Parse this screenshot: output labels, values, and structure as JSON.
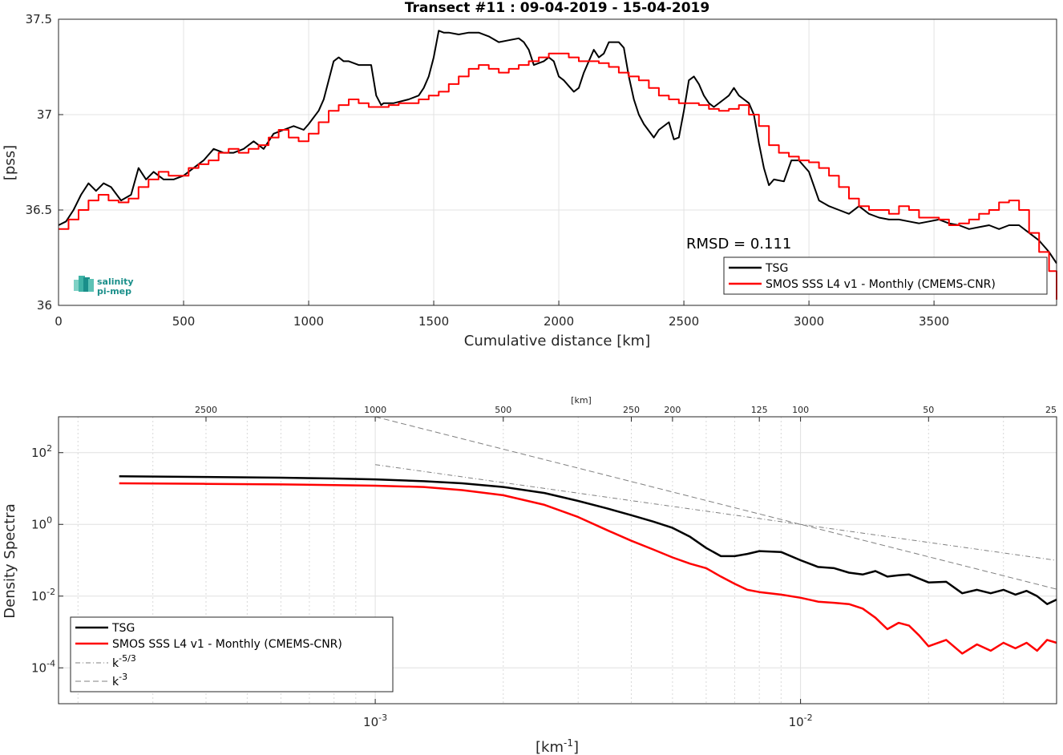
{
  "chart_data": [
    {
      "type": "line",
      "title": "Transect #11 : 09-04-2019 - 15-04-2019",
      "xlabel": "Cumulative distance [km]",
      "ylabel": "[pss]",
      "xlim": [
        0,
        3990
      ],
      "ylim": [
        36,
        37.5
      ],
      "xticks": [
        0,
        500,
        1000,
        1500,
        2000,
        2500,
        3000,
        3500
      ],
      "xtick_labels": [
        "0",
        "500",
        "1000",
        "1500",
        "2000",
        "2500",
        "3000",
        "3500"
      ],
      "yticks": [
        36,
        36.5,
        37,
        37.5
      ],
      "ytick_labels": [
        "36",
        "36.5",
        "37",
        "37.5"
      ],
      "grid": true,
      "legend_position": "bottom-right",
      "annotation": "RMSD = 0.111",
      "series": [
        {
          "name": "TSG",
          "color": "#000000",
          "x": [
            0,
            30,
            60,
            90,
            120,
            150,
            180,
            210,
            250,
            290,
            320,
            350,
            380,
            420,
            460,
            500,
            540,
            580,
            620,
            660,
            700,
            740,
            780,
            820,
            860,
            900,
            940,
            980,
            1000,
            1040,
            1060,
            1080,
            1100,
            1120,
            1140,
            1160,
            1200,
            1250,
            1270,
            1290,
            1300,
            1340,
            1400,
            1440,
            1460,
            1480,
            1500,
            1520,
            1540,
            1560,
            1600,
            1640,
            1680,
            1720,
            1760,
            1800,
            1840,
            1860,
            1880,
            1900,
            1940,
            1960,
            1980,
            2000,
            2020,
            2040,
            2060,
            2080,
            2100,
            2140,
            2160,
            2180,
            2200,
            2240,
            2260,
            2280,
            2300,
            2320,
            2340,
            2380,
            2400,
            2440,
            2460,
            2480,
            2500,
            2520,
            2540,
            2560,
            2580,
            2600,
            2620,
            2660,
            2680,
            2700,
            2720,
            2740,
            2760,
            2780,
            2800,
            2820,
            2840,
            2860,
            2900,
            2930,
            2960,
            3000,
            3040,
            3080,
            3120,
            3160,
            3200,
            3240,
            3280,
            3320,
            3360,
            3400,
            3440,
            3480,
            3520,
            3560,
            3600,
            3640,
            3680,
            3720,
            3760,
            3800,
            3840,
            3880,
            3920,
            3960,
            3990
          ],
          "y": [
            36.42,
            36.44,
            36.5,
            36.58,
            36.64,
            36.6,
            36.64,
            36.62,
            36.55,
            36.58,
            36.72,
            36.66,
            36.7,
            36.66,
            36.66,
            36.68,
            36.72,
            36.76,
            36.82,
            36.8,
            36.8,
            36.82,
            36.86,
            36.82,
            36.9,
            36.92,
            36.94,
            36.92,
            36.95,
            37.02,
            37.08,
            37.18,
            37.28,
            37.3,
            37.28,
            37.28,
            37.26,
            37.26,
            37.1,
            37.05,
            37.06,
            37.06,
            37.08,
            37.1,
            37.14,
            37.2,
            37.3,
            37.44,
            37.43,
            37.43,
            37.42,
            37.43,
            37.43,
            37.41,
            37.38,
            37.39,
            37.4,
            37.38,
            37.34,
            37.26,
            37.28,
            37.3,
            37.28,
            37.2,
            37.18,
            37.15,
            37.12,
            37.14,
            37.22,
            37.34,
            37.3,
            37.32,
            37.38,
            37.38,
            37.35,
            37.2,
            37.08,
            37.0,
            36.95,
            36.88,
            36.92,
            36.96,
            36.87,
            36.88,
            37.02,
            37.18,
            37.2,
            37.16,
            37.1,
            37.06,
            37.04,
            37.08,
            37.1,
            37.14,
            37.1,
            37.08,
            37.06,
            37.0,
            36.85,
            36.72,
            36.63,
            36.66,
            36.65,
            36.76,
            36.76,
            36.7,
            36.55,
            36.52,
            36.5,
            36.48,
            36.52,
            36.48,
            36.46,
            36.45,
            36.45,
            36.44,
            36.43,
            36.44,
            36.45,
            36.43,
            36.42,
            36.4,
            36.41,
            36.42,
            36.4,
            36.42,
            36.42,
            36.38,
            36.34,
            36.28,
            36.22
          ]
        },
        {
          "name": "SMOS SSS L4 v1 - Monthly (CMEMS-CNR)",
          "color": "#ff0000",
          "x": [
            0,
            40,
            80,
            120,
            160,
            200,
            240,
            280,
            320,
            360,
            400,
            440,
            480,
            520,
            560,
            600,
            640,
            680,
            720,
            760,
            800,
            840,
            880,
            920,
            960,
            1000,
            1040,
            1080,
            1120,
            1160,
            1200,
            1240,
            1280,
            1320,
            1360,
            1400,
            1440,
            1480,
            1520,
            1560,
            1600,
            1640,
            1680,
            1720,
            1760,
            1800,
            1840,
            1880,
            1920,
            1960,
            2000,
            2040,
            2080,
            2120,
            2160,
            2200,
            2240,
            2280,
            2320,
            2360,
            2400,
            2440,
            2480,
            2520,
            2560,
            2600,
            2640,
            2680,
            2720,
            2760,
            2800,
            2840,
            2880,
            2920,
            2960,
            3000,
            3040,
            3080,
            3120,
            3160,
            3200,
            3240,
            3280,
            3320,
            3360,
            3400,
            3440,
            3480,
            3520,
            3560,
            3600,
            3640,
            3680,
            3720,
            3760,
            3800,
            3840,
            3880,
            3920,
            3960,
            3990
          ],
          "y": [
            36.4,
            36.45,
            36.5,
            36.55,
            36.58,
            36.55,
            36.54,
            36.56,
            36.62,
            36.66,
            36.7,
            36.68,
            36.68,
            36.72,
            36.74,
            36.76,
            36.8,
            36.82,
            36.8,
            36.82,
            36.84,
            36.88,
            36.92,
            36.88,
            36.86,
            36.9,
            36.96,
            37.02,
            37.05,
            37.08,
            37.06,
            37.04,
            37.04,
            37.05,
            37.06,
            37.06,
            37.08,
            37.1,
            37.12,
            37.16,
            37.2,
            37.24,
            37.26,
            37.24,
            37.22,
            37.24,
            37.26,
            37.28,
            37.3,
            37.32,
            37.32,
            37.3,
            37.28,
            37.28,
            37.27,
            37.25,
            37.22,
            37.2,
            37.18,
            37.14,
            37.1,
            37.08,
            37.06,
            37.06,
            37.05,
            37.03,
            37.02,
            37.03,
            37.05,
            37.0,
            36.94,
            36.84,
            36.8,
            36.78,
            36.76,
            36.75,
            36.72,
            36.68,
            36.62,
            36.56,
            36.52,
            36.5,
            36.5,
            36.48,
            36.52,
            36.5,
            36.46,
            36.46,
            36.45,
            36.42,
            36.43,
            36.45,
            36.48,
            36.5,
            36.54,
            36.55,
            36.5,
            36.38,
            36.28,
            36.18,
            36.03
          ]
        }
      ]
    },
    {
      "type": "line",
      "xscale": "log",
      "yscale": "log",
      "xlabel": "[km",
      "xlabel_sup": "-1",
      "xlabel_end": "]",
      "ylabel": "Density Spectra",
      "top_axis_label": "[km]",
      "top_ticks_km": [
        2500,
        1000,
        500,
        250,
        200,
        125,
        100,
        50,
        25
      ],
      "top_tick_labels": [
        "2500",
        "1000",
        "500",
        "250",
        "200",
        "125",
        "100",
        "50",
        "25"
      ],
      "xlim": [
        0.00018,
        0.04
      ],
      "ylim": [
        1e-05,
        1000
      ],
      "xticks": [
        0.001,
        0.01
      ],
      "xtick_labels": [
        {
          "base": "10",
          "exp": "-3"
        },
        {
          "base": "10",
          "exp": "-2"
        }
      ],
      "yticks": [
        0.0001,
        0.01,
        1,
        100
      ],
      "ytick_labels": [
        {
          "base": "10",
          "exp": "-4"
        },
        {
          "base": "10",
          "exp": "-2"
        },
        {
          "base": "10",
          "exp": "0"
        },
        {
          "base": "10",
          "exp": "2"
        }
      ],
      "grid": true,
      "legend_position": "bottom-left",
      "series": [
        {
          "name": "TSG",
          "color": "#000000",
          "style": "solid",
          "x": [
            0.00025,
            0.0004,
            0.0006,
            0.0008,
            0.001,
            0.0013,
            0.0016,
            0.002,
            0.0025,
            0.003,
            0.0035,
            0.004,
            0.0045,
            0.005,
            0.0055,
            0.006,
            0.0065,
            0.007,
            0.0075,
            0.008,
            0.009,
            0.01,
            0.011,
            0.012,
            0.013,
            0.014,
            0.015,
            0.016,
            0.017,
            0.018,
            0.02,
            0.022,
            0.024,
            0.026,
            0.028,
            0.03,
            0.032,
            0.034,
            0.036,
            0.038,
            0.04
          ],
          "y": [
            22,
            21,
            20,
            19,
            18,
            16,
            14,
            11,
            7.5,
            4.5,
            2.8,
            1.8,
            1.2,
            0.8,
            0.45,
            0.22,
            0.13,
            0.13,
            0.15,
            0.18,
            0.17,
            0.1,
            0.065,
            0.06,
            0.045,
            0.04,
            0.05,
            0.035,
            0.038,
            0.04,
            0.024,
            0.025,
            0.012,
            0.015,
            0.012,
            0.015,
            0.011,
            0.014,
            0.01,
            0.006,
            0.008
          ]
        },
        {
          "name": "SMOS SSS L4 v1 - Monthly (CMEMS-CNR)",
          "color": "#ff0000",
          "style": "solid",
          "x": [
            0.00025,
            0.0004,
            0.0006,
            0.0008,
            0.001,
            0.0013,
            0.0016,
            0.002,
            0.0025,
            0.003,
            0.0035,
            0.004,
            0.0045,
            0.005,
            0.0055,
            0.006,
            0.0065,
            0.007,
            0.0075,
            0.008,
            0.009,
            0.01,
            0.011,
            0.012,
            0.013,
            0.014,
            0.015,
            0.016,
            0.017,
            0.018,
            0.019,
            0.02,
            0.022,
            0.024,
            0.026,
            0.028,
            0.03,
            0.032,
            0.034,
            0.036,
            0.038,
            0.04
          ],
          "y": [
            14,
            13.5,
            13,
            12.5,
            12,
            11,
            9,
            6.5,
            3.5,
            1.6,
            0.7,
            0.35,
            0.2,
            0.12,
            0.08,
            0.06,
            0.035,
            0.022,
            0.015,
            0.013,
            0.011,
            0.009,
            0.007,
            0.0065,
            0.006,
            0.0045,
            0.0025,
            0.0012,
            0.0018,
            0.0015,
            0.0008,
            0.0004,
            0.0006,
            0.00025,
            0.00045,
            0.0003,
            0.0005,
            0.00035,
            0.0005,
            0.0003,
            0.0006,
            0.0005
          ]
        },
        {
          "name": "k",
          "name_sup": "-5/3",
          "color": "#808080",
          "style": "dashdot",
          "exponent": -1.6667,
          "anchor_x": 0.01,
          "anchor_y": 1.0,
          "x_range": [
            0.001,
            0.04
          ]
        },
        {
          "name": "k",
          "name_sup": "-3",
          "color": "#808080",
          "style": "dashed",
          "exponent": -3,
          "anchor_x": 0.01,
          "anchor_y": 1.0,
          "x_range": [
            0.001,
            0.04
          ]
        }
      ]
    }
  ],
  "logo": {
    "line1": "salinity",
    "line2": "pi-mep",
    "color": "#1a8f8a"
  }
}
